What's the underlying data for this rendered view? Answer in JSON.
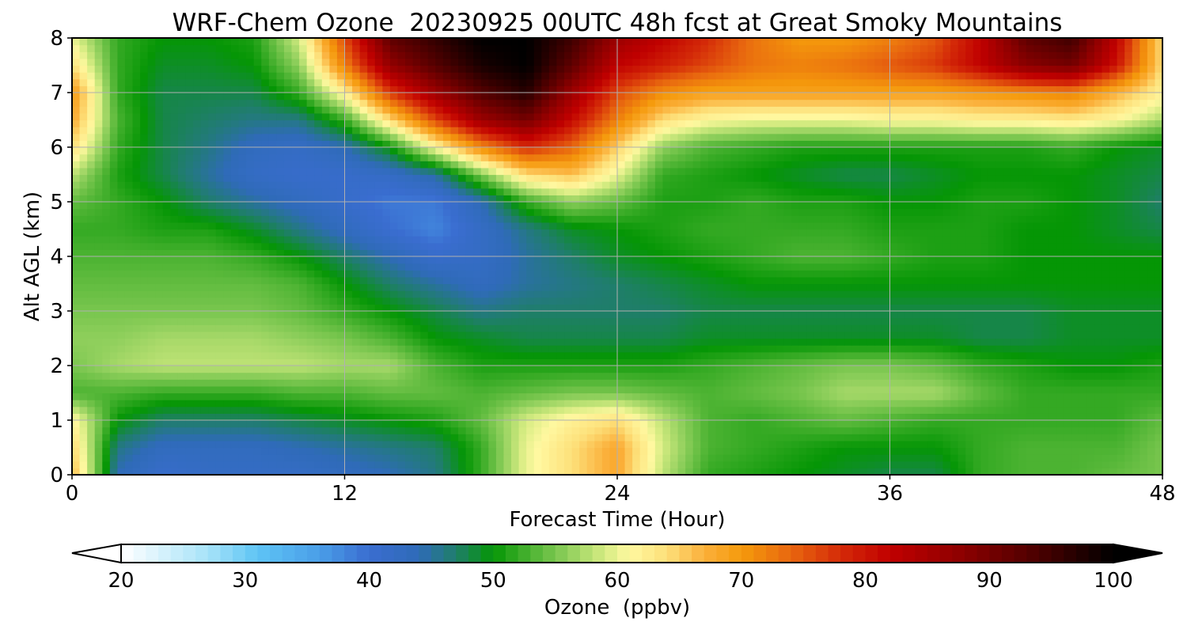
{
  "chart_data": {
    "type": "heatmap",
    "title": "WRF-Chem Ozone  20230925 00UTC 48h fcst at Great Smoky Mountains",
    "xlabel": "Forecast Time (Hour)",
    "ylabel": "Alt AGL (km)",
    "xlim": [
      0,
      48
    ],
    "ylim": [
      0,
      8
    ],
    "xticks": [
      "0",
      "12",
      "24",
      "36",
      "48"
    ],
    "yticks": [
      "0",
      "1",
      "2",
      "3",
      "4",
      "5",
      "6",
      "7",
      "8"
    ],
    "grid": true,
    "colorbar": {
      "label": "Ozone  (ppbv)",
      "min": 20,
      "max": 100,
      "ticks": [
        "20",
        "30",
        "40",
        "50",
        "60",
        "70",
        "80",
        "90",
        "100"
      ],
      "extend": "both",
      "colors": [
        {
          "v": 20,
          "c": "#ffffff"
        },
        {
          "v": 27,
          "c": "#a7e3f8"
        },
        {
          "v": 31,
          "c": "#5ec4f5"
        },
        {
          "v": 36,
          "c": "#4a9ee8"
        },
        {
          "v": 40,
          "c": "#3a6dd0"
        },
        {
          "v": 44,
          "c": "#2f6bb8"
        },
        {
          "v": 47,
          "c": "#1f7e6a"
        },
        {
          "v": 50,
          "c": "#059605"
        },
        {
          "v": 53,
          "c": "#4cb332"
        },
        {
          "v": 56,
          "c": "#8fcf5c"
        },
        {
          "v": 59,
          "c": "#d6ec82"
        },
        {
          "v": 61,
          "c": "#fff8a0"
        },
        {
          "v": 64,
          "c": "#fde07a"
        },
        {
          "v": 67,
          "c": "#fbb03b"
        },
        {
          "v": 70,
          "c": "#f59a0c"
        },
        {
          "v": 74,
          "c": "#e8670f"
        },
        {
          "v": 78,
          "c": "#d42a08"
        },
        {
          "v": 82,
          "c": "#c00000"
        },
        {
          "v": 88,
          "c": "#8a0000"
        },
        {
          "v": 94,
          "c": "#4a0000"
        },
        {
          "v": 100,
          "c": "#000000"
        }
      ]
    },
    "x": [
      0,
      2,
      4,
      6,
      8,
      10,
      12,
      14,
      16,
      18,
      20,
      22,
      24,
      26,
      28,
      30,
      32,
      34,
      36,
      38,
      40,
      42,
      44,
      46,
      48
    ],
    "y": [
      0,
      0.5,
      1,
      1.5,
      2,
      2.5,
      3,
      3.5,
      4,
      4.5,
      5,
      5.5,
      6,
      6.5,
      7,
      7.5,
      8
    ],
    "z": [
      [
        67,
        44,
        41,
        42,
        42,
        42,
        43,
        44,
        46,
        52,
        60,
        64,
        68,
        58,
        52,
        51,
        50,
        49,
        48,
        48,
        52,
        53,
        53,
        54,
        55
      ],
      [
        65,
        46,
        43,
        43,
        43,
        44,
        45,
        46,
        47,
        52,
        60,
        64,
        68,
        59,
        53,
        52,
        51,
        50,
        50,
        50,
        52,
        53,
        53,
        53,
        55
      ],
      [
        62,
        50,
        47,
        47,
        47,
        48,
        49,
        50,
        51,
        54,
        59,
        62,
        64,
        58,
        53,
        52,
        53,
        54,
        53,
        52,
        52,
        52,
        52,
        52,
        54
      ],
      [
        53,
        53,
        52,
        52,
        52,
        53,
        53,
        54,
        54,
        53,
        54,
        55,
        55,
        54,
        53,
        54,
        55,
        57,
        57,
        57,
        54,
        52,
        52,
        52,
        52
      ],
      [
        55,
        57,
        58,
        58,
        58,
        58,
        57,
        57,
        53,
        51,
        51,
        51,
        51,
        51,
        52,
        53,
        54,
        55,
        55,
        54,
        52,
        51,
        50,
        50,
        51
      ],
      [
        56,
        56,
        57,
        57,
        57,
        56,
        55,
        53,
        50,
        49,
        48,
        48,
        48,
        48,
        49,
        49,
        49,
        49,
        49,
        49,
        48,
        48,
        49,
        49,
        49
      ],
      [
        55,
        55,
        55,
        55,
        55,
        54,
        52,
        50,
        48,
        46,
        47,
        47,
        47,
        47,
        48,
        48,
        48,
        48,
        48,
        48,
        48,
        48,
        49,
        49,
        49
      ],
      [
        54,
        54,
        54,
        54,
        54,
        53,
        50,
        47,
        45,
        43,
        45,
        46,
        47,
        48,
        49,
        50,
        50,
        50,
        50,
        50,
        50,
        50,
        50,
        50,
        50
      ],
      [
        53,
        53,
        53,
        53,
        52,
        50,
        47,
        44,
        41,
        42,
        45,
        47,
        49,
        50,
        51,
        52,
        53,
        53,
        52,
        51,
        51,
        50,
        50,
        50,
        50
      ],
      [
        52,
        52,
        51,
        51,
        49,
        46,
        43,
        40,
        38,
        42,
        46,
        49,
        50,
        51,
        52,
        52,
        52,
        52,
        51,
        51,
        51,
        50,
        50,
        49,
        48
      ],
      [
        54,
        52,
        50,
        47,
        45,
        43,
        41,
        39,
        39,
        44,
        52,
        56,
        54,
        51,
        51,
        52,
        51,
        51,
        50,
        50,
        51,
        51,
        50,
        49,
        47
      ],
      [
        58,
        51,
        48,
        45,
        42,
        41,
        41,
        42,
        45,
        55,
        64,
        66,
        60,
        52,
        51,
        50,
        49,
        48,
        48,
        49,
        50,
        50,
        50,
        49,
        48
      ],
      [
        64,
        52,
        48,
        46,
        43,
        42,
        44,
        50,
        61,
        71,
        78,
        74,
        65,
        56,
        53,
        52,
        51,
        51,
        51,
        51,
        51,
        51,
        52,
        50,
        49
      ],
      [
        68,
        53,
        48,
        47,
        46,
        46,
        52,
        64,
        76,
        86,
        90,
        81,
        72,
        64,
        61,
        60,
        60,
        60,
        61,
        61,
        62,
        62,
        63,
        61,
        57
      ],
      [
        70,
        52,
        48,
        48,
        48,
        52,
        62,
        77,
        86,
        93,
        97,
        86,
        76,
        71,
        69,
        69,
        69,
        69,
        69,
        69,
        70,
        71,
        72,
        67,
        62
      ],
      [
        64,
        52,
        49,
        49,
        50,
        56,
        72,
        87,
        93,
        98,
        100,
        92,
        82,
        79,
        76,
        73,
        72,
        73,
        75,
        77,
        82,
        88,
        90,
        80,
        64
      ],
      [
        60,
        52,
        50,
        50,
        51,
        59,
        76,
        92,
        96,
        100,
        100,
        95,
        86,
        82,
        78,
        73,
        70,
        70,
        72,
        75,
        82,
        92,
        95,
        82,
        64
      ]
    ]
  }
}
